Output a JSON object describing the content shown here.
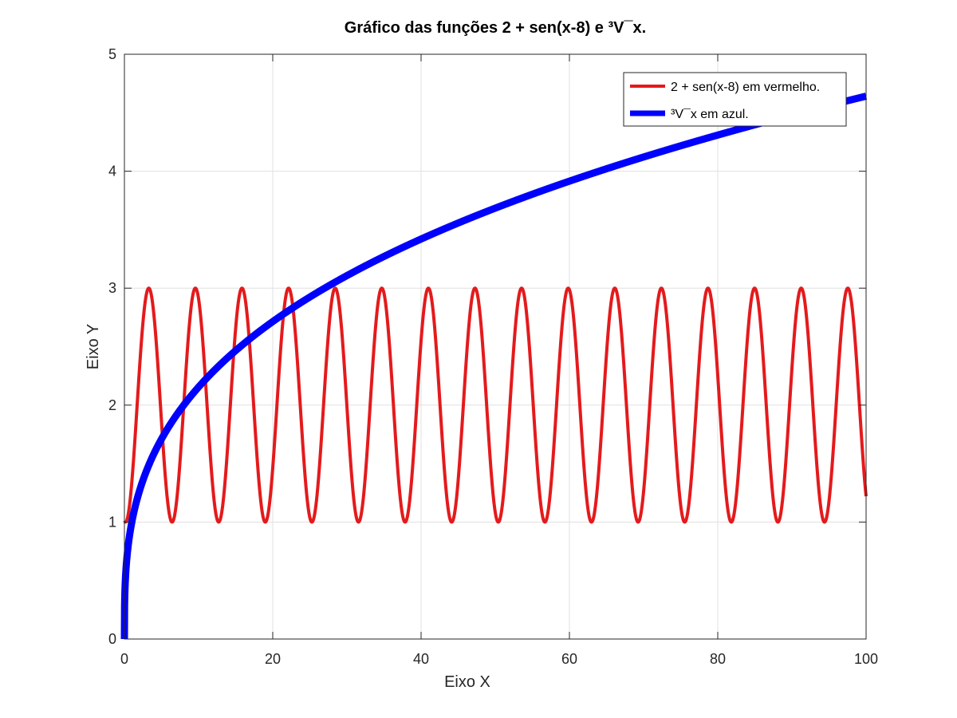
{
  "chart_data": {
    "type": "line",
    "title": "Gráfico das funções 2 + sen(x-8) e ³V¯x.",
    "xlabel": "Eixo X",
    "ylabel": "Eixo Y",
    "xlim": [
      0,
      100
    ],
    "ylim": [
      0,
      5
    ],
    "xticks": [
      0,
      20,
      40,
      60,
      80,
      100
    ],
    "yticks": [
      0,
      1,
      2,
      3,
      4,
      5
    ],
    "grid": true,
    "legend_position": "top-right",
    "series": [
      {
        "name": "2 + sen(x-8) em vermelho.",
        "color": "#e41a1c",
        "function": "2 + sin(x - 8)",
        "x_range": [
          0,
          100
        ],
        "points": [
          [
            0,
            1.01
          ],
          [
            3.3,
            3.0
          ],
          [
            6.4,
            1.0
          ],
          [
            9.6,
            3.0
          ],
          [
            12.7,
            1.0
          ],
          [
            15.9,
            3.0
          ],
          [
            19.0,
            1.0
          ],
          [
            22.2,
            3.0
          ],
          [
            25.3,
            1.0
          ],
          [
            28.4,
            3.0
          ],
          [
            31.6,
            1.0
          ],
          [
            34.7,
            3.0
          ],
          [
            37.9,
            1.0
          ],
          [
            41.0,
            3.0
          ],
          [
            44.1,
            1.0
          ],
          [
            47.3,
            3.0
          ],
          [
            50.4,
            1.0
          ],
          [
            53.6,
            3.0
          ],
          [
            56.7,
            1.0
          ],
          [
            59.8,
            3.0
          ],
          [
            63.0,
            1.0
          ],
          [
            66.1,
            3.0
          ],
          [
            69.3,
            1.0
          ],
          [
            72.4,
            3.0
          ],
          [
            75.6,
            1.0
          ],
          [
            78.7,
            3.0
          ],
          [
            81.8,
            1.0
          ],
          [
            85.0,
            3.0
          ],
          [
            88.1,
            1.0
          ],
          [
            91.3,
            3.0
          ],
          [
            94.4,
            1.0
          ],
          [
            97.5,
            3.0
          ],
          [
            100,
            1.23
          ]
        ]
      },
      {
        "name": "³V¯x em azul.",
        "color": "#0000ff",
        "function": "cbrt(x)",
        "x_range": [
          0,
          100
        ],
        "points": [
          [
            0,
            0
          ],
          [
            1,
            1.0
          ],
          [
            8,
            2.0
          ],
          [
            27,
            3.0
          ],
          [
            64,
            4.0
          ],
          [
            100,
            4.64
          ]
        ]
      }
    ]
  }
}
